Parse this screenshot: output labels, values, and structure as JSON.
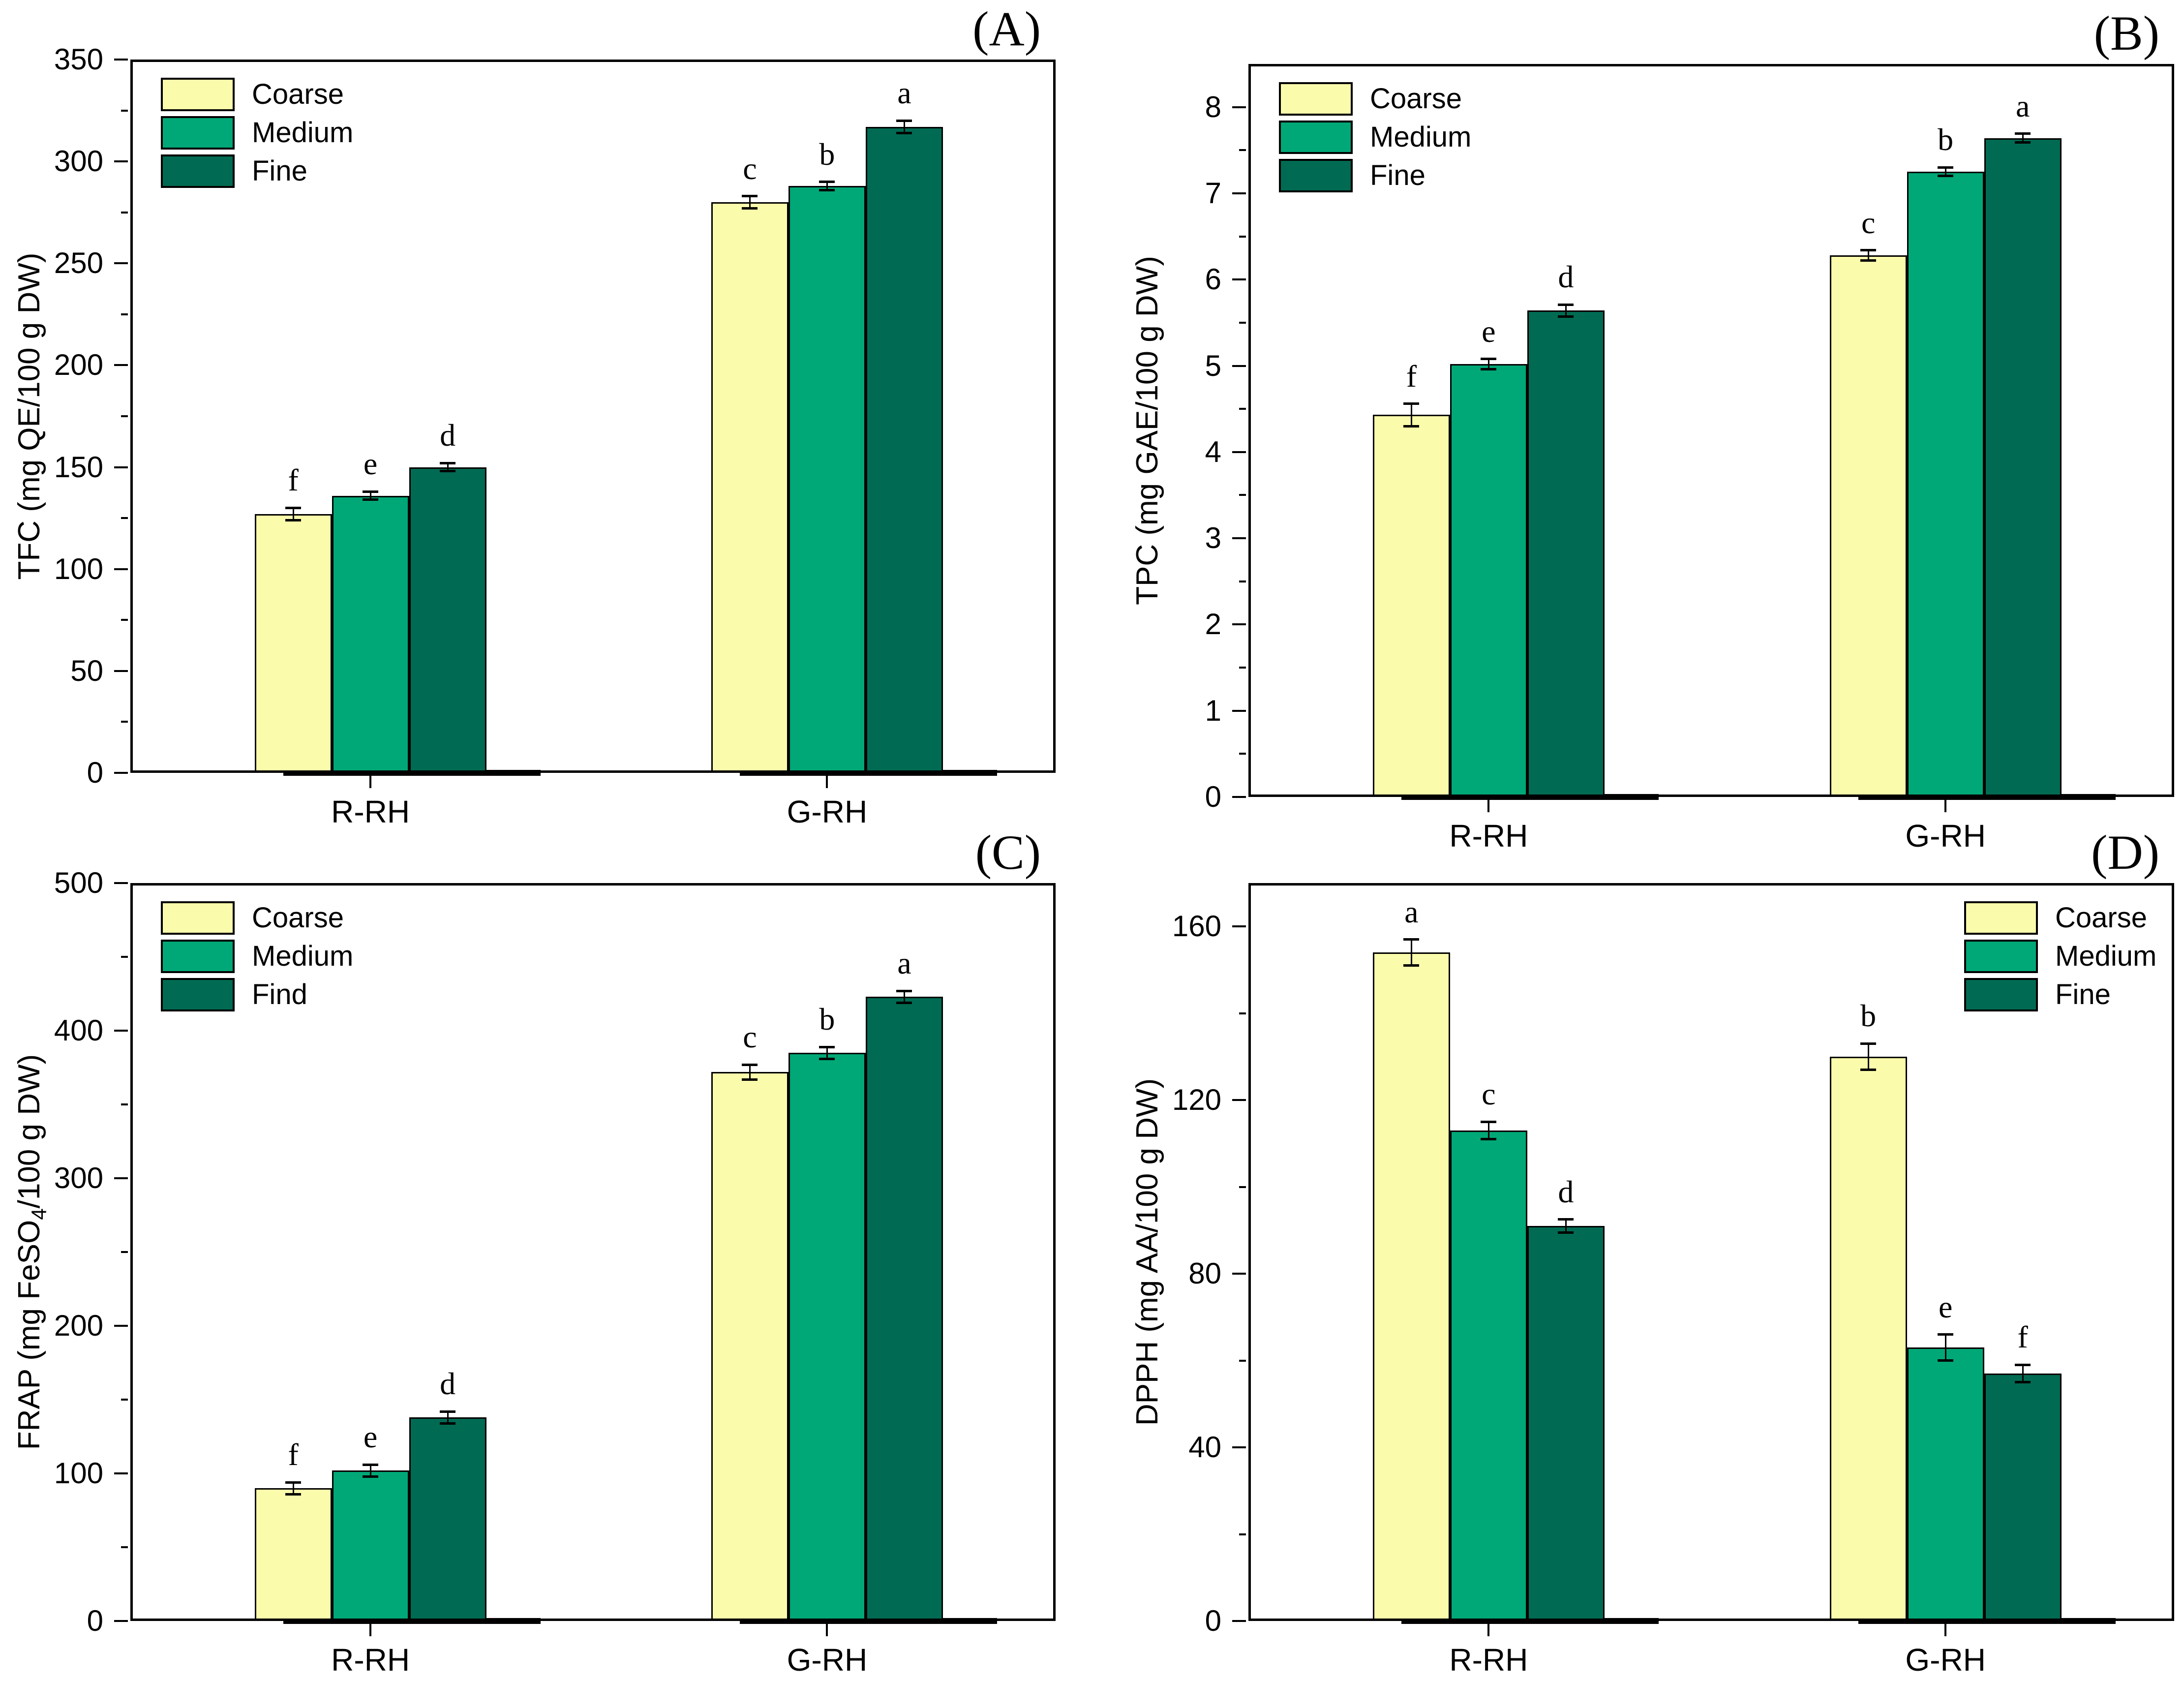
{
  "figure": {
    "title": "",
    "background": "#FFFFFF",
    "colors": {
      "coarse": "#FBFBAC",
      "medium": "#00A877",
      "fine": "#006B52",
      "edge": "#000000"
    }
  },
  "chart_data": [
    {
      "id": "A",
      "type": "bar",
      "corner_label": "(A)",
      "ylabel": {
        "pre": "TFC (mg QE/100 g DW)",
        "sub": "",
        "post": ""
      },
      "categories": [
        "R-RH",
        "G-RH"
      ],
      "ylim": [
        0,
        350
      ],
      "axis_top": 350,
      "yticks": [
        0,
        50,
        100,
        150,
        200,
        250,
        300,
        350
      ],
      "yminor_step": 25,
      "grid": false,
      "legend": {
        "position": "top-left",
        "items": [
          "Coarse",
          "Medium",
          "Fine"
        ]
      },
      "series": [
        {
          "name": "Coarse",
          "values": [
            127,
            280
          ],
          "errors": [
            3,
            3
          ],
          "letters": [
            "f",
            "c"
          ]
        },
        {
          "name": "Medium",
          "values": [
            136,
            288
          ],
          "errors": [
            2,
            2
          ],
          "letters": [
            "e",
            "b"
          ]
        },
        {
          "name": "Fine",
          "values": [
            150,
            317
          ],
          "errors": [
            2,
            3
          ],
          "letters": [
            "d",
            "a"
          ]
        }
      ]
    },
    {
      "id": "B",
      "type": "bar",
      "corner_label": "(B)",
      "ylabel": {
        "pre": "TPC (mg GAE/100 g DW)",
        "sub": "",
        "post": ""
      },
      "categories": [
        "R-RH",
        "G-RH"
      ],
      "ylim": [
        0,
        8.5
      ],
      "axis_top": 8.5,
      "yticks": [
        0,
        1,
        2,
        3,
        4,
        5,
        6,
        7,
        8
      ],
      "yminor_step": 0.5,
      "grid": false,
      "legend": {
        "position": "top-left",
        "items": [
          "Coarse",
          "Medium",
          "Fine"
        ]
      },
      "series": [
        {
          "name": "Coarse",
          "values": [
            4.43,
            6.28
          ],
          "errors": [
            0.13,
            0.06
          ],
          "letters": [
            "f",
            "c"
          ]
        },
        {
          "name": "Medium",
          "values": [
            5.02,
            7.25
          ],
          "errors": [
            0.06,
            0.05
          ],
          "letters": [
            "e",
            "b"
          ]
        },
        {
          "name": "Fine",
          "values": [
            5.64,
            7.64
          ],
          "errors": [
            0.07,
            0.05
          ],
          "letters": [
            "d",
            "a"
          ]
        }
      ]
    },
    {
      "id": "C",
      "type": "bar",
      "corner_label": "(C)",
      "ylabel": {
        "pre": "FRAP (mg FeSO",
        "sub": "4",
        "post": "/100 g DW)"
      },
      "categories": [
        "R-RH",
        "G-RH"
      ],
      "ylim": [
        0,
        500
      ],
      "axis_top": 500,
      "yticks": [
        0,
        100,
        200,
        300,
        400,
        500
      ],
      "yminor_step": 50,
      "grid": false,
      "legend": {
        "position": "top-left",
        "items": [
          "Coarse",
          "Medium",
          "Find"
        ]
      },
      "series": [
        {
          "name": "Coarse",
          "values": [
            90,
            372
          ],
          "errors": [
            4,
            5
          ],
          "letters": [
            "f",
            "c"
          ]
        },
        {
          "name": "Medium",
          "values": [
            102,
            385
          ],
          "errors": [
            4,
            4
          ],
          "letters": [
            "e",
            "b"
          ]
        },
        {
          "name": "Fine",
          "values": [
            138,
            423
          ],
          "errors": [
            4,
            4
          ],
          "letters": [
            "d",
            "a"
          ]
        }
      ]
    },
    {
      "id": "D",
      "type": "bar",
      "corner_label": "(D)",
      "ylabel": {
        "pre": "DPPH (mg AA/100 g DW)",
        "sub": "",
        "post": ""
      },
      "categories": [
        "R-RH",
        "G-RH"
      ],
      "ylim": [
        0,
        170
      ],
      "axis_top": 170,
      "yticks": [
        0,
        40,
        80,
        120,
        160
      ],
      "yminor_step": 20,
      "grid": false,
      "legend": {
        "position": "top-right",
        "items": [
          "Coarse",
          "Medium",
          "Fine"
        ]
      },
      "series": [
        {
          "name": "Coarse",
          "values": [
            154,
            130
          ],
          "errors": [
            3,
            3
          ],
          "letters": [
            "a",
            "b"
          ]
        },
        {
          "name": "Medium",
          "values": [
            113,
            63
          ],
          "errors": [
            2,
            3
          ],
          "letters": [
            "c",
            "e"
          ]
        },
        {
          "name": "Fine",
          "values": [
            91,
            57
          ],
          "errors": [
            1.5,
            2
          ],
          "letters": [
            "d",
            "f"
          ]
        }
      ]
    }
  ]
}
